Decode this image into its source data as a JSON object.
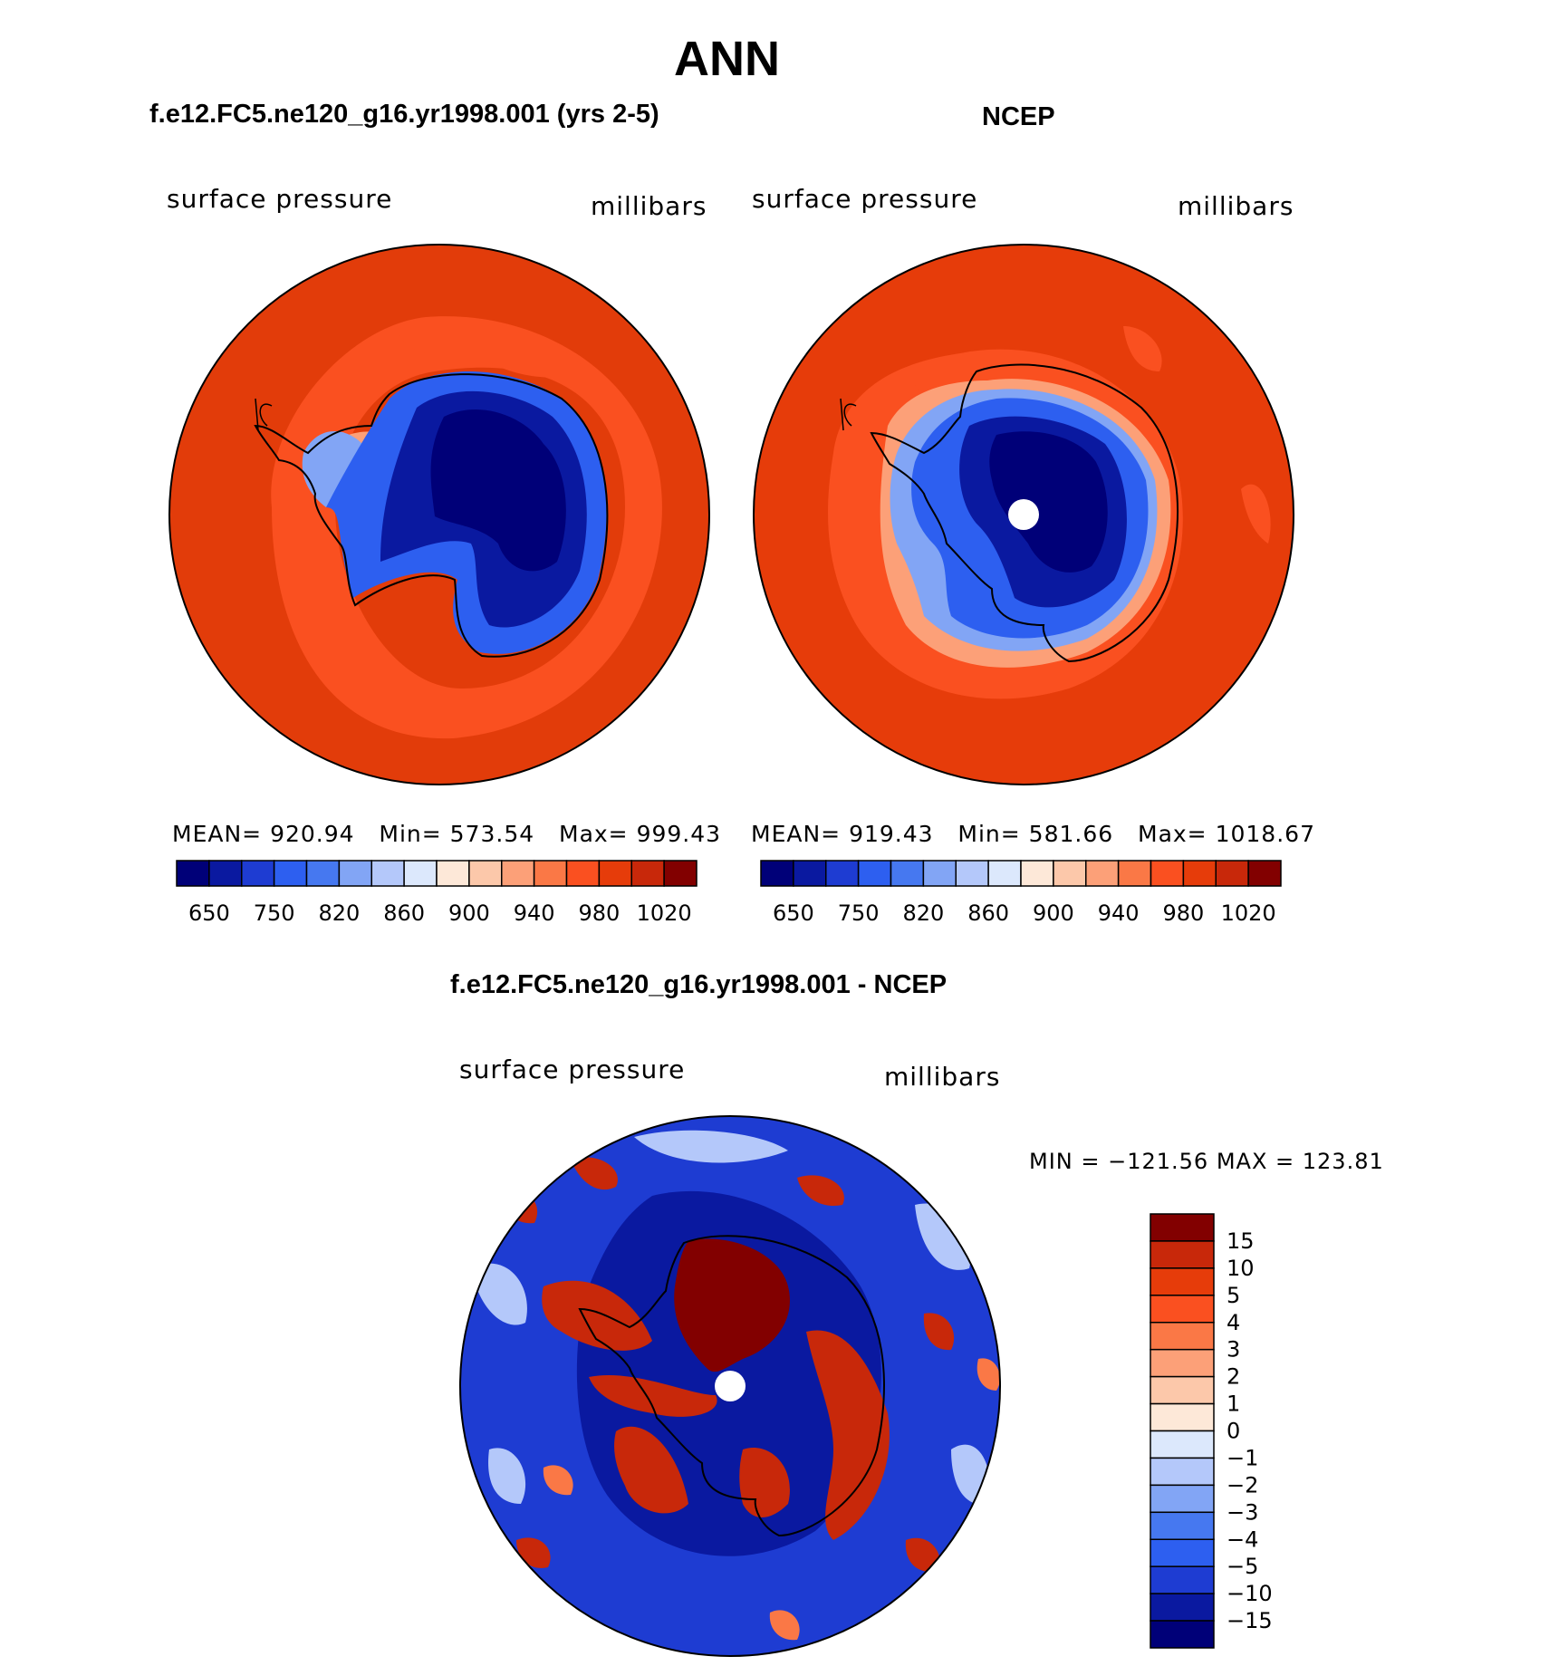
{
  "title": "ANN",
  "panels": [
    {
      "id": "model",
      "heading": "f.e12.FC5.ne120_g16.yr1998.001 (yrs 2-5)",
      "variable": "surface pressure",
      "units": "millibars",
      "stats": {
        "mean_label": "MEAN=",
        "mean": "920.94",
        "min_label": "Min=",
        "min": "573.54",
        "max_label": "Max=",
        "max": "999.43"
      }
    },
    {
      "id": "obs",
      "heading": "NCEP",
      "variable": "surface pressure",
      "units": "millibars",
      "stats": {
        "mean_label": "MEAN=",
        "mean": "919.43",
        "min_label": "Min=",
        "min": "581.66",
        "max_label": "Max=",
        "max": "1018.67"
      }
    }
  ],
  "diff_panel": {
    "heading": "f.e12.FC5.ne120_g16.yr1998.001 - NCEP",
    "variable": "surface pressure",
    "units": "millibars",
    "minmax": "MIN = −121.56 MAX = 123.81"
  },
  "colorbar_main": {
    "colors": [
      "#000078",
      "#0a19a0",
      "#1e3cd2",
      "#2d5ff0",
      "#4678f0",
      "#82a5f5",
      "#b4c8fa",
      "#dce8fc",
      "#fde8d8",
      "#fcc8aa",
      "#fca078",
      "#fa7846",
      "#fa5020",
      "#e63c0a",
      "#c8280a",
      "#820000"
    ],
    "tick_labels": [
      "650",
      "750",
      "820",
      "860",
      "900",
      "940",
      "980",
      "1020"
    ]
  },
  "colorbar_diff": {
    "colors": [
      "#820000",
      "#c8280a",
      "#e63c0a",
      "#fa5020",
      "#fa7846",
      "#fca078",
      "#fcc8aa",
      "#fde8d8",
      "#dce8fc",
      "#b4c8fa",
      "#82a5f5",
      "#4678f0",
      "#2d5ff0",
      "#1e3cd2",
      "#0a19a0",
      "#000078"
    ],
    "tick_labels": [
      "15",
      "10",
      "5",
      "4",
      "3",
      "2",
      "1",
      "0",
      "−1",
      "−2",
      "−3",
      "−4",
      "−5",
      "−10",
      "−15"
    ]
  },
  "map_colors": {
    "ocean_model": "#e23c0a",
    "ocean_model_ring": "#fa5020",
    "ocean_obs": "#e63c0a",
    "ocean_obs_light": "#fa5020",
    "ice_deep": "#000078",
    "ice_mid": "#0a19a0",
    "ice_edge": "#2d5ff0",
    "ice_light": "#82a5f5",
    "transition": "#fca078",
    "diff_blue": "#1e3cd2",
    "diff_dark_blue": "#0a19a0",
    "diff_light": "#b4c8fa",
    "diff_red": "#c8280a",
    "diff_dark_red": "#820000",
    "diff_orange": "#fa7846"
  }
}
